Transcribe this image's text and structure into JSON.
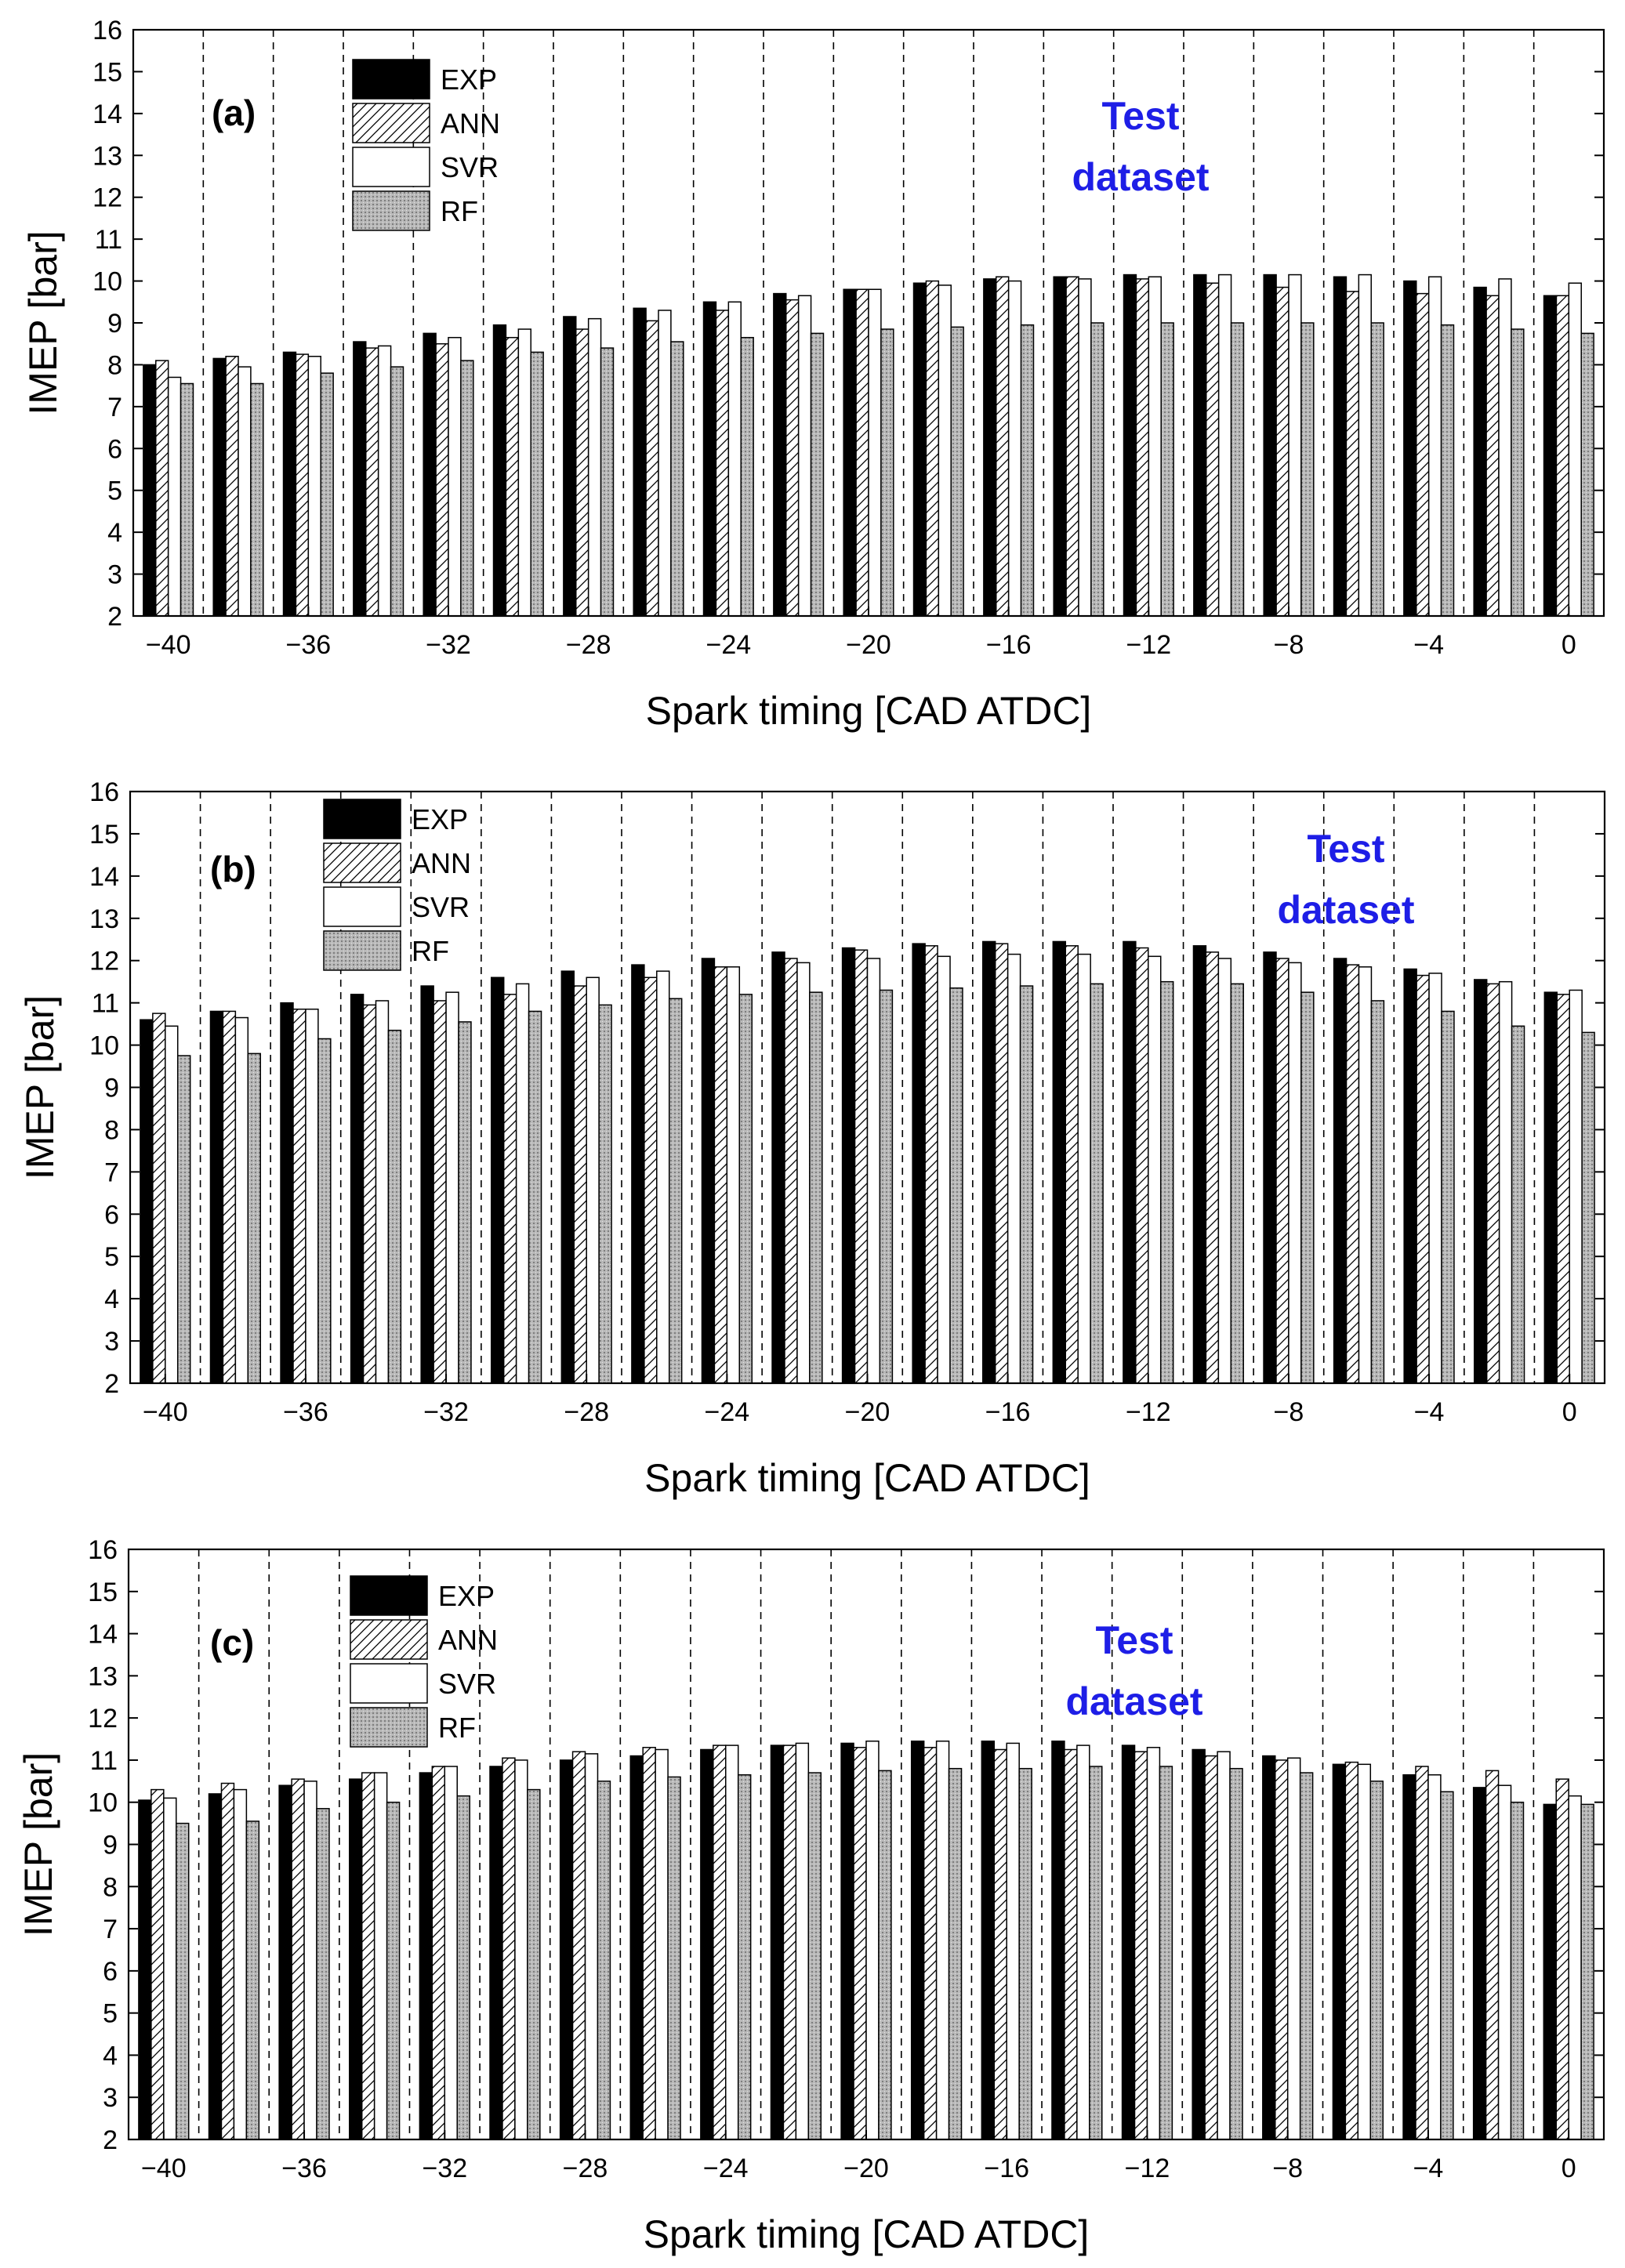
{
  "chart_data": [
    {
      "type": "bar",
      "panel_label": "(a)",
      "annotation": [
        "Test",
        "dataset"
      ],
      "xlabel": "Spark timing [CAD ATDC]",
      "ylabel": "IMEP [bar]",
      "ylim": [
        2,
        16
      ],
      "yticks": [
        2,
        3,
        4,
        5,
        6,
        7,
        8,
        9,
        10,
        11,
        12,
        13,
        14,
        15,
        16
      ],
      "xticks": [
        -40,
        -36,
        -32,
        -28,
        -24,
        -20,
        -16,
        -12,
        -8,
        -4,
        0
      ],
      "tick_labels": [
        "−40",
        "−36",
        "−32",
        "−28",
        "−24",
        "−20",
        "−16",
        "−12",
        "−8",
        "−4",
        "0"
      ],
      "categories": [
        -40,
        -38,
        -36,
        -34,
        -32,
        -30,
        -28,
        -26,
        -24,
        -22,
        -20,
        -18,
        -16,
        -14,
        -12,
        -10,
        -8,
        -6,
        -4,
        -2,
        0
      ],
      "legend_position": "top-left",
      "series": [
        {
          "name": "EXP",
          "values": [
            8.0,
            8.15,
            8.3,
            8.55,
            8.75,
            8.95,
            9.15,
            9.35,
            9.5,
            9.7,
            9.8,
            9.95,
            10.05,
            10.1,
            10.15,
            10.15,
            10.15,
            10.1,
            10.0,
            9.85,
            9.65
          ]
        },
        {
          "name": "ANN",
          "values": [
            8.1,
            8.2,
            8.25,
            8.4,
            8.5,
            8.65,
            8.85,
            9.05,
            9.3,
            9.55,
            9.8,
            10.0,
            10.1,
            10.1,
            10.05,
            9.95,
            9.85,
            9.75,
            9.7,
            9.65,
            9.65
          ]
        },
        {
          "name": "SVR",
          "values": [
            7.7,
            7.95,
            8.2,
            8.45,
            8.65,
            8.85,
            9.1,
            9.3,
            9.5,
            9.65,
            9.8,
            9.9,
            10.0,
            10.05,
            10.1,
            10.15,
            10.15,
            10.15,
            10.1,
            10.05,
            9.95
          ]
        },
        {
          "name": "RF",
          "values": [
            7.55,
            7.55,
            7.8,
            7.95,
            8.1,
            8.3,
            8.4,
            8.55,
            8.65,
            8.75,
            8.85,
            8.9,
            8.95,
            9.0,
            9.0,
            9.0,
            9.0,
            9.0,
            8.95,
            8.85,
            8.75
          ]
        }
      ]
    },
    {
      "type": "bar",
      "panel_label": "(b)",
      "annotation": [
        "Test",
        "dataset"
      ],
      "xlabel": "Spark timing [CAD ATDC]",
      "ylabel": "IMEP [bar]",
      "ylim": [
        2,
        16
      ],
      "yticks": [
        2,
        3,
        4,
        5,
        6,
        7,
        8,
        9,
        10,
        11,
        12,
        13,
        14,
        15,
        16
      ],
      "xticks": [
        -40,
        -36,
        -32,
        -28,
        -24,
        -20,
        -16,
        -12,
        -8,
        -4,
        0
      ],
      "tick_labels": [
        "−40",
        "−36",
        "−32",
        "−28",
        "−24",
        "−20",
        "−16",
        "−12",
        "−8",
        "−4",
        "0"
      ],
      "categories": [
        -40,
        -38,
        -36,
        -34,
        -32,
        -30,
        -28,
        -26,
        -24,
        -22,
        -20,
        -18,
        -16,
        -14,
        -12,
        -10,
        -8,
        -6,
        -4,
        -2,
        0
      ],
      "legend_position": "top-left",
      "series": [
        {
          "name": "EXP",
          "values": [
            10.6,
            10.8,
            11.0,
            11.2,
            11.4,
            11.6,
            11.75,
            11.9,
            12.05,
            12.2,
            12.3,
            12.4,
            12.45,
            12.45,
            12.45,
            12.35,
            12.2,
            12.05,
            11.8,
            11.55,
            11.25
          ]
        },
        {
          "name": "ANN",
          "values": [
            10.75,
            10.8,
            10.85,
            10.95,
            11.05,
            11.2,
            11.4,
            11.6,
            11.85,
            12.05,
            12.25,
            12.35,
            12.4,
            12.35,
            12.3,
            12.2,
            12.05,
            11.9,
            11.65,
            11.45,
            11.2
          ]
        },
        {
          "name": "SVR",
          "values": [
            10.45,
            10.65,
            10.85,
            11.05,
            11.25,
            11.45,
            11.6,
            11.75,
            11.85,
            11.95,
            12.05,
            12.1,
            12.15,
            12.15,
            12.1,
            12.05,
            11.95,
            11.85,
            11.7,
            11.5,
            11.3
          ]
        },
        {
          "name": "RF",
          "values": [
            9.75,
            9.8,
            10.15,
            10.35,
            10.55,
            10.8,
            10.95,
            11.1,
            11.2,
            11.25,
            11.3,
            11.35,
            11.4,
            11.45,
            11.5,
            11.45,
            11.25,
            11.05,
            10.8,
            10.45,
            10.3
          ]
        }
      ]
    },
    {
      "type": "bar",
      "panel_label": "(c)",
      "annotation": [
        "Test",
        "dataset"
      ],
      "xlabel": "Spark timing [CAD ATDC]",
      "ylabel": "IMEP [bar]",
      "ylim": [
        2,
        16
      ],
      "yticks": [
        2,
        3,
        4,
        5,
        6,
        7,
        8,
        9,
        10,
        11,
        12,
        13,
        14,
        15,
        16
      ],
      "xticks": [
        -40,
        -36,
        -32,
        -28,
        -24,
        -20,
        -16,
        -12,
        -8,
        -4,
        0
      ],
      "tick_labels": [
        "−40",
        "−36",
        "−32",
        "−28",
        "−24",
        "−20",
        "−16",
        "−12",
        "−8",
        "−4",
        "0"
      ],
      "categories": [
        -40,
        -38,
        -36,
        -34,
        -32,
        -30,
        -28,
        -26,
        -24,
        -22,
        -20,
        -18,
        -16,
        -14,
        -12,
        -10,
        -8,
        -6,
        -4,
        -2,
        0
      ],
      "legend_position": "top-left",
      "series": [
        {
          "name": "EXP",
          "values": [
            10.05,
            10.2,
            10.4,
            10.55,
            10.7,
            10.85,
            11.0,
            11.1,
            11.25,
            11.35,
            11.4,
            11.45,
            11.45,
            11.45,
            11.35,
            11.25,
            11.1,
            10.9,
            10.65,
            10.35,
            9.95
          ]
        },
        {
          "name": "ANN",
          "values": [
            10.3,
            10.45,
            10.55,
            10.7,
            10.85,
            11.05,
            11.2,
            11.3,
            11.35,
            11.35,
            11.3,
            11.3,
            11.25,
            11.25,
            11.2,
            11.1,
            11.0,
            10.95,
            10.85,
            10.75,
            10.55
          ]
        },
        {
          "name": "SVR",
          "values": [
            10.1,
            10.3,
            10.5,
            10.7,
            10.85,
            11.0,
            11.15,
            11.25,
            11.35,
            11.4,
            11.45,
            11.45,
            11.4,
            11.35,
            11.3,
            11.2,
            11.05,
            10.9,
            10.65,
            10.4,
            10.15
          ]
        },
        {
          "name": "RF",
          "values": [
            9.5,
            9.55,
            9.85,
            10.0,
            10.15,
            10.3,
            10.5,
            10.6,
            10.65,
            10.7,
            10.75,
            10.8,
            10.8,
            10.85,
            10.85,
            10.8,
            10.7,
            10.5,
            10.25,
            10.0,
            9.95
          ]
        }
      ]
    }
  ],
  "colors": {
    "exp_fill": "#000000",
    "ann_fill": "#ffffff",
    "svr_fill": "#ffffff",
    "rf_fill": "#b4b4b4",
    "annotation": "#1e1ee6",
    "axis": "#000000"
  }
}
